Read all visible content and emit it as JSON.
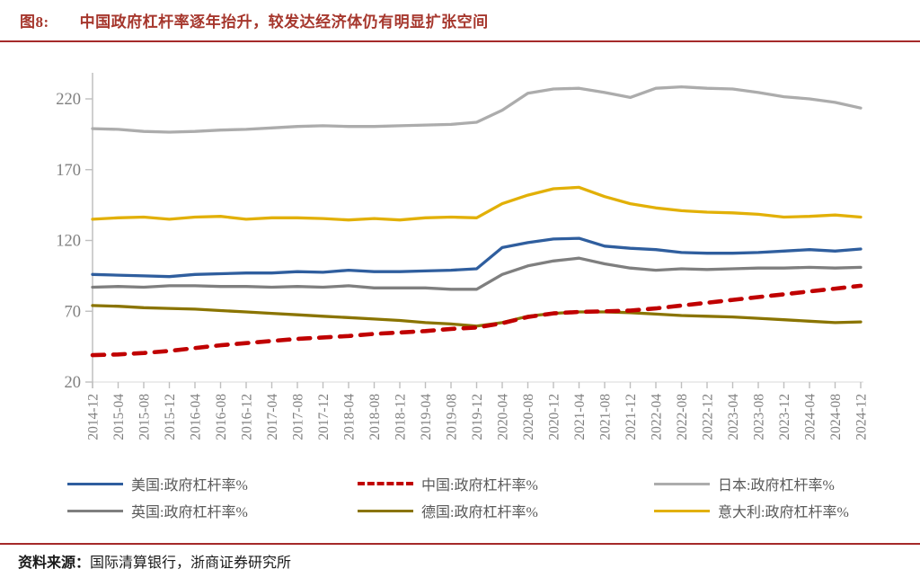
{
  "header": {
    "title_prefix": "图8:",
    "title": "中国政府杠杆率逐年抬升，较发达经济体仍有明显扩张空间"
  },
  "footer": {
    "source_label": "资料来源：",
    "source_text": "国际清算银行，浙商证券研究所"
  },
  "colors": {
    "accent_rule": "#A52A2A",
    "title_text": "#A6372D",
    "axis_line": "#BFBFBF",
    "baseline": "#D9D9D9",
    "tick_label": "#7F7F7F",
    "legend_label": "#595959"
  },
  "chart_data": {
    "type": "line",
    "title": "",
    "xlabel": "",
    "ylabel": "",
    "grid": false,
    "legend_position": "bottom",
    "y_ticks": [
      20,
      70,
      120,
      170,
      220
    ],
    "ylim": [
      20,
      236
    ],
    "categories": [
      "2014-12",
      "2015-04",
      "2015-08",
      "2015-12",
      "2016-04",
      "2016-08",
      "2016-12",
      "2017-04",
      "2017-08",
      "2017-12",
      "2018-04",
      "2018-08",
      "2018-12",
      "2019-04",
      "2019-08",
      "2019-12",
      "2020-04",
      "2020-08",
      "2020-12",
      "2021-04",
      "2021-08",
      "2021-12",
      "2022-04",
      "2022-08",
      "2022-12",
      "2023-04",
      "2023-08",
      "2023-12",
      "2024-04",
      "2024-08",
      "2024-12"
    ],
    "series": [
      {
        "id": "us",
        "name": "美国:政府杠杆率%",
        "color": "#2F5E9E",
        "style": "solid",
        "values": [
          96,
          95.5,
          95,
          94.5,
          96,
          96.5,
          97,
          97,
          98,
          97.5,
          99,
          98,
          98,
          98.5,
          99,
          100,
          115,
          118.5,
          121,
          121.5,
          116,
          114.5,
          113.5,
          111.5,
          111,
          111,
          111.5,
          112.5,
          113.5,
          112.5,
          114
        ]
      },
      {
        "id": "china",
        "name": "中国:政府杠杆率%",
        "color": "#C00000",
        "style": "dashed",
        "values": [
          39,
          39.5,
          40.5,
          42,
          44,
          46,
          47.5,
          49,
          50.5,
          51.5,
          52.5,
          54,
          55,
          56,
          57.5,
          58.5,
          61.5,
          66,
          68.5,
          69.5,
          70,
          70.5,
          72,
          74,
          76,
          78,
          80,
          82,
          84,
          86,
          88
        ]
      },
      {
        "id": "japan",
        "name": "日本:政府杠杆率%",
        "color": "#ACACAC",
        "style": "solid",
        "values": [
          199,
          198.5,
          197,
          196.5,
          197,
          198,
          198.5,
          199.5,
          200.5,
          201,
          200.5,
          200.5,
          201,
          201.5,
          202,
          203.5,
          212,
          224,
          227,
          227.5,
          224.5,
          221,
          227.5,
          228.5,
          227.5,
          227,
          224.5,
          221.5,
          220,
          217.5,
          213.5
        ]
      },
      {
        "id": "uk",
        "name": "英国:政府杠杆率%",
        "color": "#7F7F7F",
        "style": "solid",
        "values": [
          87,
          87.5,
          87,
          88,
          88,
          87.5,
          87.5,
          87,
          87.5,
          87,
          88,
          86.5,
          86.5,
          86.5,
          85.5,
          85.5,
          96,
          102,
          105.5,
          107.5,
          103.5,
          100.5,
          99,
          100,
          99.5,
          100,
          100.5,
          100.5,
          101,
          100.5,
          101
        ]
      },
      {
        "id": "germany",
        "name": "德国:政府杠杆率%",
        "color": "#8A7400",
        "style": "solid",
        "values": [
          74,
          73.5,
          72.5,
          72,
          71.5,
          70.5,
          69.5,
          68.5,
          67.5,
          66.5,
          65.5,
          64.5,
          63.5,
          62,
          61,
          59.5,
          62,
          66.5,
          68.5,
          69.5,
          69.5,
          69,
          68,
          67,
          66.5,
          66,
          65,
          64,
          63,
          62,
          62.5
        ]
      },
      {
        "id": "italy",
        "name": "意大利:政府杠杆率%",
        "color": "#E2B007",
        "style": "solid",
        "values": [
          135,
          136,
          136.5,
          135,
          136.5,
          137,
          135,
          136,
          136,
          135.5,
          134.5,
          135.5,
          134.5,
          136,
          136.5,
          136,
          146,
          152,
          156.5,
          157.5,
          151,
          146,
          143,
          141,
          140,
          139.5,
          138.5,
          136.5,
          137,
          138,
          136.5
        ]
      }
    ],
    "legend_order": [
      "us",
      "china",
      "japan",
      "uk",
      "germany",
      "italy"
    ]
  }
}
